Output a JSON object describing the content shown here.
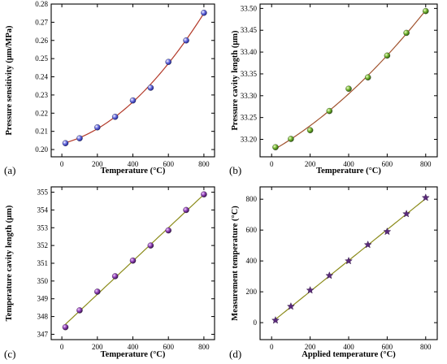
{
  "chart_data": [
    {
      "type": "scatter",
      "panel_label": "(a)",
      "xlabel": "Temperature (°C)",
      "ylabel": "Pressure sensitivity (μm/MPa)",
      "xlim": [
        -60,
        860
      ],
      "ylim": [
        0.196,
        0.28
      ],
      "xticks": [
        0,
        200,
        400,
        600,
        800
      ],
      "xtick_labels": [
        "0",
        "200",
        "400",
        "600",
        "800"
      ],
      "yticks": [
        0.2,
        0.21,
        0.22,
        0.23,
        0.24,
        0.25,
        0.26,
        0.27,
        0.28
      ],
      "ytick_labels": [
        "0.20",
        "0.21",
        "0.22",
        "0.23",
        "0.24",
        "0.25",
        "0.26",
        "0.27",
        "0.28"
      ],
      "marker": "sphere",
      "marker_color": "#3a3fc4",
      "fit_color": "#b33a2a",
      "fit_type": "quadratic",
      "x": [
        20,
        100,
        200,
        300,
        400,
        500,
        600,
        700,
        800
      ],
      "y": [
        0.2035,
        0.2062,
        0.2122,
        0.218,
        0.227,
        0.234,
        0.2482,
        0.26,
        0.2752
      ],
      "fit_x": [
        20,
        800
      ],
      "fit_points": [
        [
          20,
          0.2032
        ],
        [
          100,
          0.2055
        ],
        [
          200,
          0.2102
        ],
        [
          300,
          0.2163
        ],
        [
          400,
          0.2243
        ],
        [
          500,
          0.2338
        ],
        [
          600,
          0.245
        ],
        [
          700,
          0.2588
        ],
        [
          800,
          0.2745
        ]
      ]
    },
    {
      "type": "scatter",
      "panel_label": "(b)",
      "xlabel": "Temperature (°C)",
      "ylabel": "Pressure cavity length (μm)",
      "xlim": [
        -60,
        860
      ],
      "ylim": [
        33.16,
        33.51
      ],
      "xticks": [
        0,
        200,
        400,
        600,
        800
      ],
      "xtick_labels": [
        "0",
        "200",
        "400",
        "600",
        "800"
      ],
      "yticks": [
        33.2,
        33.25,
        33.3,
        33.35,
        33.4,
        33.45,
        33.5
      ],
      "ytick_labels": [
        "33.20",
        "33.25",
        "33.30",
        "33.35",
        "33.40",
        "33.45",
        "33.50"
      ],
      "marker": "sphere",
      "marker_color": "#4d8a1f",
      "fit_color": "#a0522d",
      "fit_type": "quadratic",
      "x": [
        20,
        100,
        200,
        300,
        400,
        500,
        600,
        700,
        800
      ],
      "y": [
        33.182,
        33.201,
        33.221,
        33.265,
        33.316,
        33.342,
        33.392,
        33.444,
        33.494
      ],
      "fit_x": [
        20,
        800
      ],
      "fit_points": [
        [
          20,
          33.183
        ],
        [
          100,
          33.195
        ],
        [
          200,
          33.225
        ],
        [
          300,
          33.26
        ],
        [
          400,
          33.296
        ],
        [
          500,
          33.336
        ],
        [
          600,
          33.385
        ],
        [
          700,
          33.436
        ],
        [
          800,
          33.492
        ]
      ]
    },
    {
      "type": "scatter",
      "panel_label": "(c)",
      "xlabel": "Temperature (°C)",
      "ylabel": "Temperature cavity length (μm)",
      "xlim": [
        -60,
        860
      ],
      "ylim": [
        346.7,
        355.3
      ],
      "xticks": [
        0,
        200,
        400,
        600,
        800
      ],
      "xtick_labels": [
        "0",
        "200",
        "400",
        "600",
        "800"
      ],
      "yticks": [
        347,
        348,
        349,
        350,
        351,
        352,
        353,
        354,
        355
      ],
      "ytick_labels": [
        "347",
        "348",
        "349",
        "350",
        "351",
        "352",
        "353",
        "354",
        "355"
      ],
      "marker": "sphere",
      "marker_color": "#6a2a8a",
      "fit_color": "#8b8b1a",
      "fit_type": "linear",
      "x": [
        20,
        100,
        200,
        300,
        400,
        500,
        600,
        700,
        800
      ],
      "y": [
        347.4,
        348.35,
        349.4,
        350.27,
        351.15,
        352.0,
        352.85,
        354.0,
        354.88
      ],
      "fit_x": [
        20,
        800
      ],
      "fit_points": [
        [
          20,
          347.45
        ],
        [
          800,
          354.92
        ]
      ]
    },
    {
      "type": "scatter",
      "panel_label": "(d)",
      "xlabel": "Applied temperature (°C)",
      "ylabel": "Measurement temperature (°C)",
      "xlim": [
        -60,
        860
      ],
      "ylim": [
        -110,
        880
      ],
      "xticks": [
        0,
        200,
        400,
        600,
        800
      ],
      "xtick_labels": [
        "0",
        "200",
        "400",
        "600",
        "800"
      ],
      "yticks": [
        0,
        200,
        400,
        600,
        800
      ],
      "ytick_labels": [
        "0",
        "200",
        "400",
        "600",
        "800"
      ],
      "marker": "star",
      "marker_color": "#5a2a7a",
      "fit_color": "#8b8b1a",
      "fit_type": "linear",
      "x": [
        20,
        100,
        200,
        300,
        400,
        500,
        600,
        700,
        800
      ],
      "y": [
        15,
        105,
        210,
        305,
        400,
        505,
        590,
        705,
        810
      ],
      "fit_x": [
        20,
        800
      ],
      "fit_points": [
        [
          20,
          15
        ],
        [
          800,
          810
        ]
      ]
    }
  ]
}
